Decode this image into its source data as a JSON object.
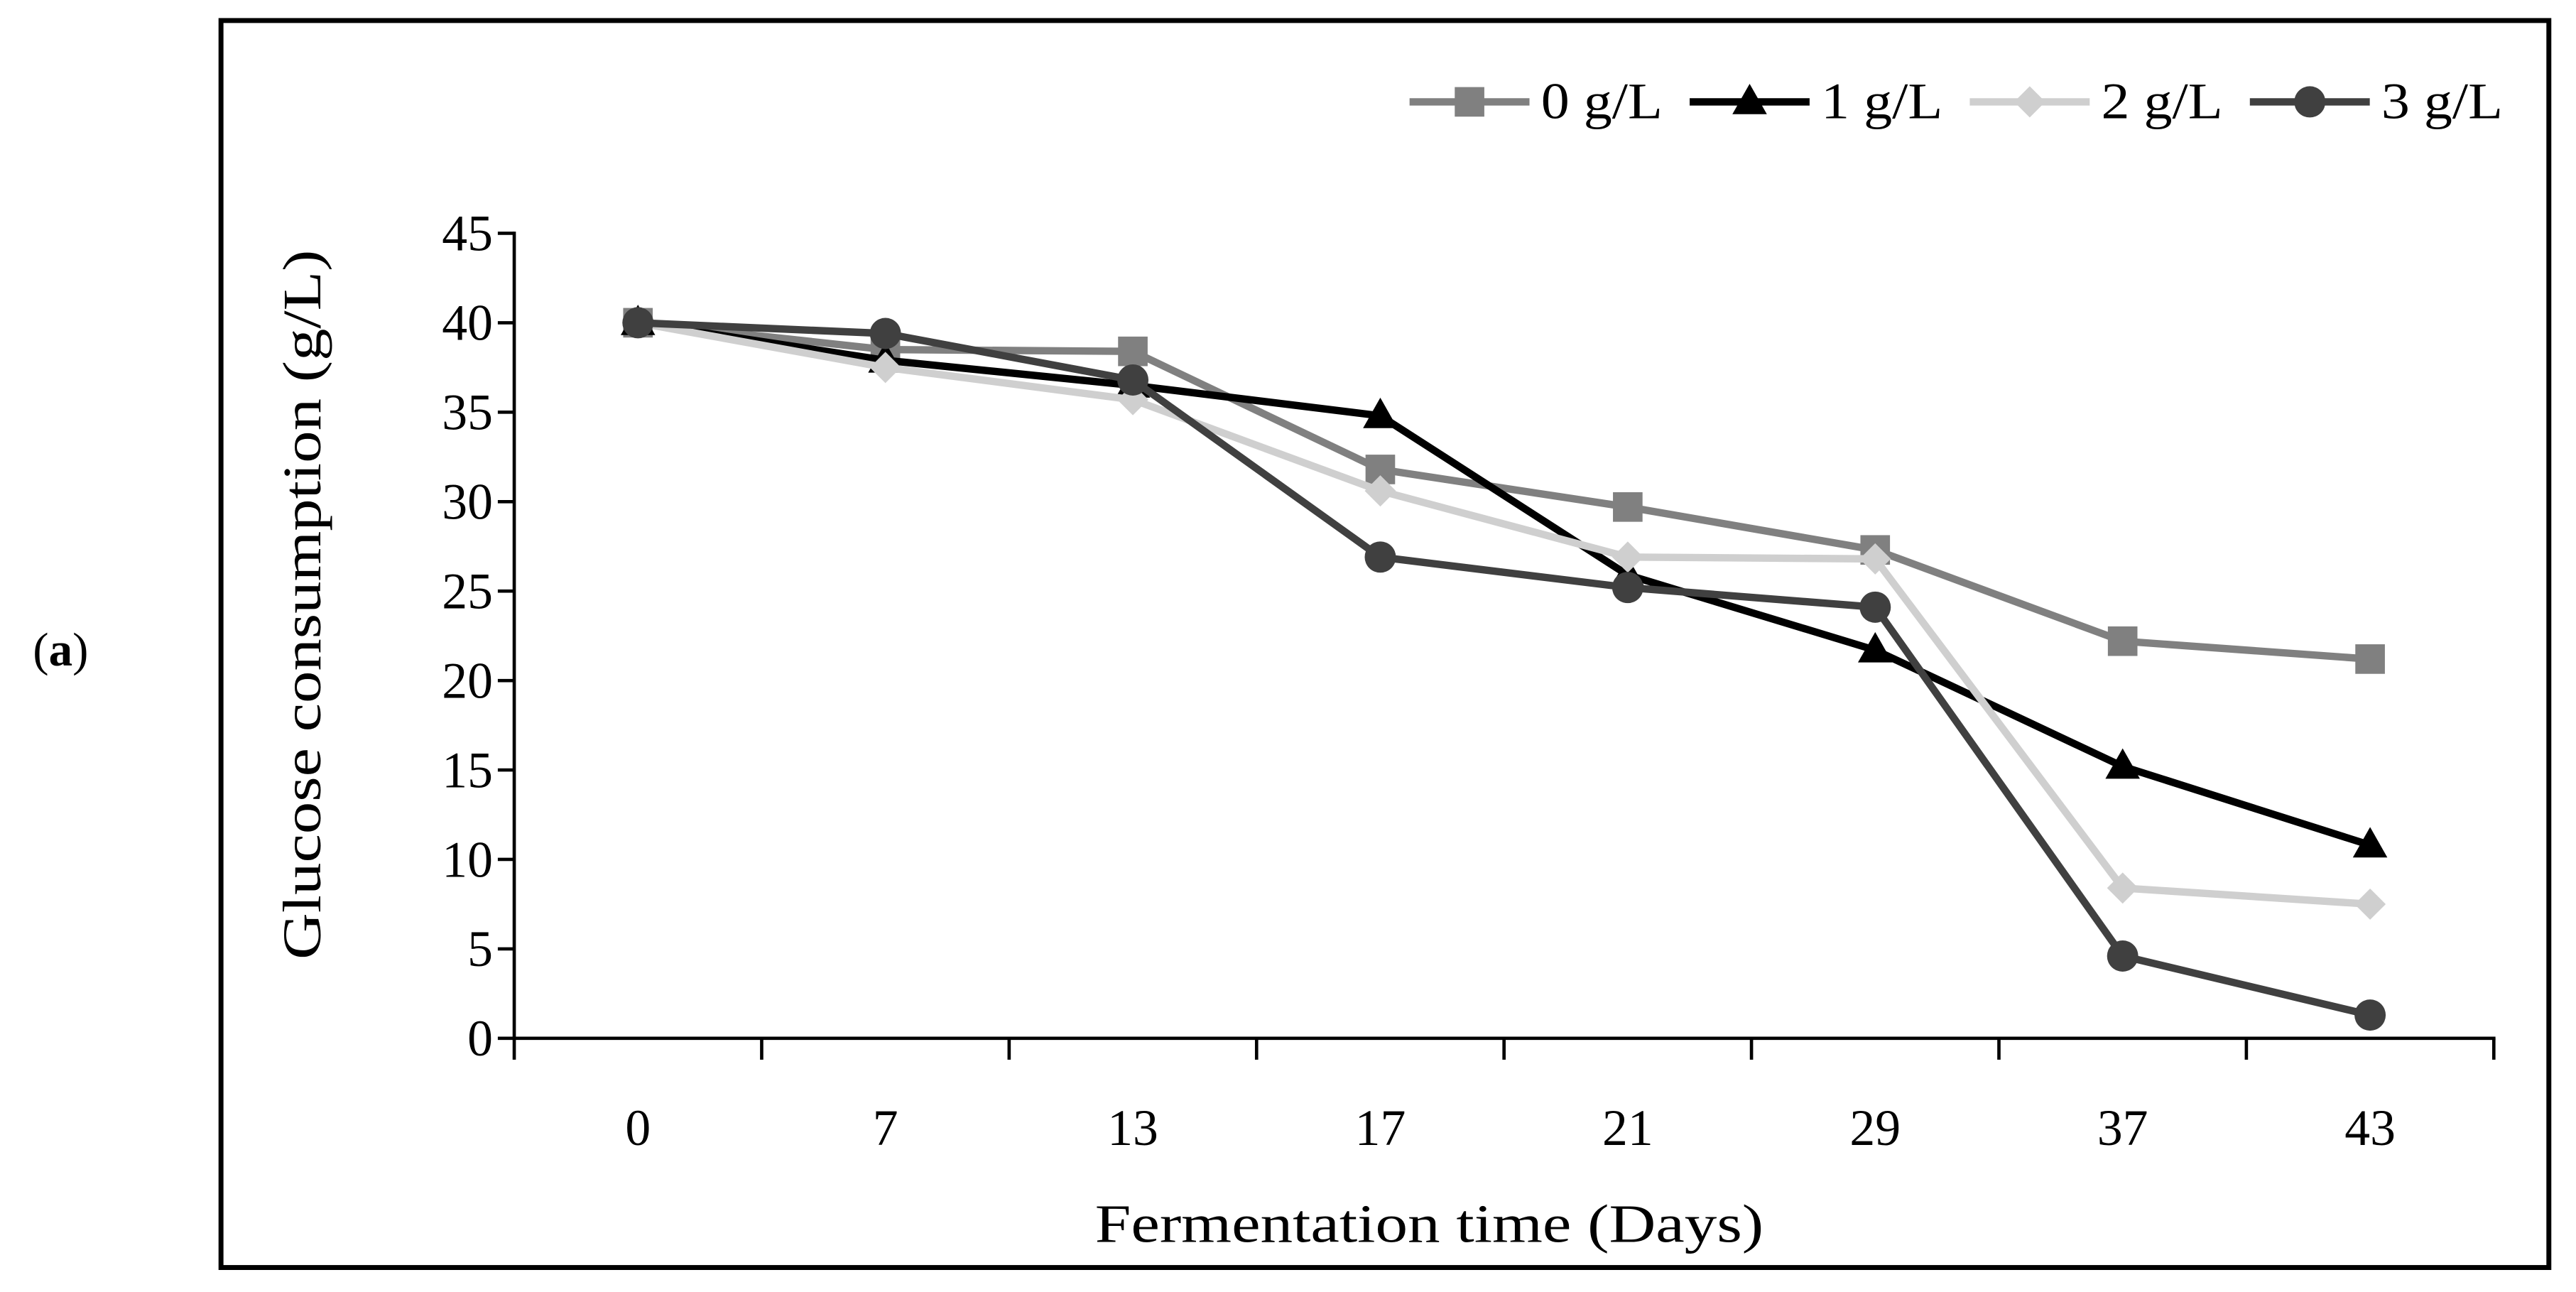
{
  "panel_label": "(a)",
  "chart_data": {
    "type": "line",
    "xlabel": "Fermentation time (Days)",
    "ylabel": "Glucose consumption (g/L)",
    "categories": [
      "0",
      "7",
      "13",
      "17",
      "21",
      "29",
      "37",
      "43"
    ],
    "ylim": [
      0,
      45
    ],
    "y_ticks": [
      0,
      5,
      10,
      15,
      20,
      25,
      30,
      35,
      40,
      45
    ],
    "grid": false,
    "legend_position": "top-right",
    "series": [
      {
        "name": "0 g/L",
        "color": "#808080",
        "marker": "square",
        "values": [
          40.0,
          38.5,
          38.4,
          31.8,
          29.7,
          27.3,
          22.2,
          21.2
        ]
      },
      {
        "name": "1 g/L",
        "color": "#000000",
        "marker": "triangle",
        "values": [
          40.0,
          37.9,
          36.5,
          34.8,
          25.9,
          21.7,
          15.2,
          10.8
        ]
      },
      {
        "name": "2 g/L",
        "color": "#cfcfcf",
        "marker": "diamond",
        "values": [
          40.0,
          37.5,
          35.7,
          30.6,
          26.9,
          26.8,
          8.4,
          7.5
        ]
      },
      {
        "name": "3 g/L",
        "color": "#404040",
        "marker": "circle",
        "values": [
          40.0,
          39.4,
          36.8,
          26.9,
          25.2,
          24.1,
          4.6,
          1.3
        ]
      }
    ]
  }
}
